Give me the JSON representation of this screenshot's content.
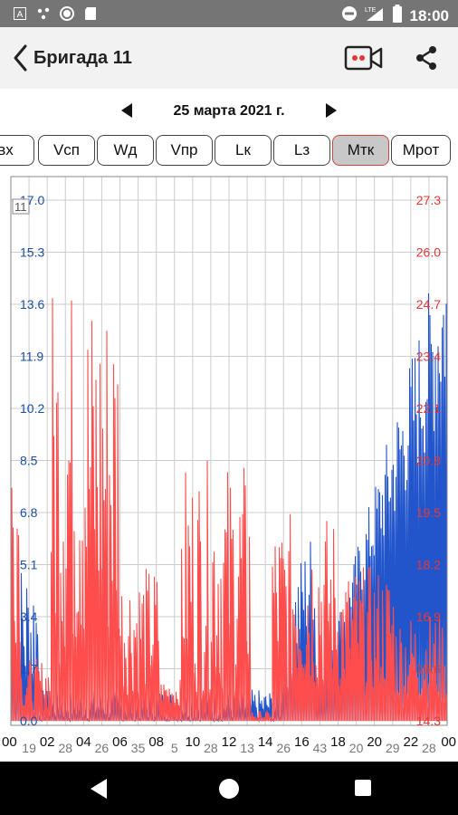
{
  "status_bar": {
    "time": "18:00",
    "network": "LTE",
    "left_icons": [
      "a-icon",
      "dots-icon",
      "circle-icon",
      "sd-card-icon"
    ],
    "right_icons": [
      "dnd-icon",
      "lte-signal-icon",
      "battery-icon"
    ]
  },
  "app_bar": {
    "title": "Бригада 11",
    "icons": [
      "back-arrow-icon",
      "video-camera-icon",
      "share-icon"
    ],
    "camera_dot_color": "#e53935"
  },
  "date_nav": {
    "date": "25 марта 2021 г."
  },
  "tabs": {
    "items": [
      "вх",
      "Vсп",
      "Wд",
      "Vпр",
      "Lк",
      "Lз",
      "Мтк",
      "Мрот"
    ],
    "selected": "Мтк"
  },
  "chart_data": {
    "type": "line",
    "series": [
      {
        "color": "#2255cc",
        "values": []
      },
      {
        "color": "#ff4d4d",
        "values": []
      }
    ],
    "left_axis_ticks": [
      "0.0",
      "1.7",
      "3.4",
      "5.1",
      "6.8",
      "8.5",
      "10.2",
      "11.9",
      "13.6",
      "15.3",
      "17.0"
    ],
    "right_axis_ticks": [
      "14.3",
      "15.6",
      "16.9",
      "18.2",
      "19.5",
      "20.8",
      "22.1",
      "23.4",
      "24.7",
      "26.0",
      "27.3"
    ],
    "left_axis_range": [
      0.0,
      17.0
    ],
    "right_axis_range": [
      14.3,
      27.3
    ],
    "x_major_labels": [
      "00",
      "02",
      "04",
      "06",
      "08",
      "10",
      "12",
      "14",
      "16",
      "18",
      "20",
      "22",
      "00"
    ],
    "x_minor_labels": [
      "19",
      "28",
      "26",
      "35",
      "5",
      "28",
      "13",
      "26",
      "43",
      "20",
      "29",
      "28"
    ],
    "legend_marker": "11",
    "left_axis_color": "#1a4fa8",
    "right_axis_color": "#e53935",
    "grid": true
  }
}
